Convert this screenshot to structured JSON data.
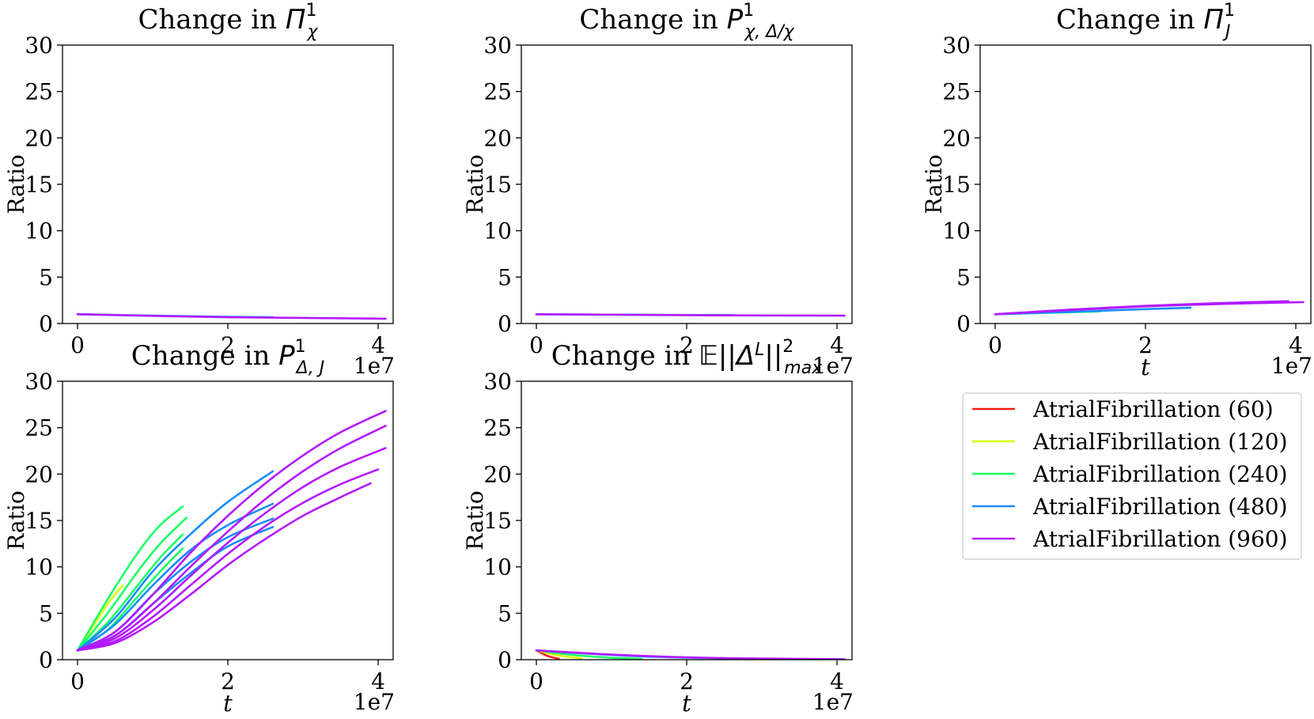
{
  "figure": {
    "legend": {
      "entries": [
        {
          "label": "AtrialFibrillation (60)",
          "color": "#ff1a1a"
        },
        {
          "label": "AtrialFibrillation (120)",
          "color": "#d4ff00"
        },
        {
          "label": "AtrialFibrillation (240)",
          "color": "#1aff66"
        },
        {
          "label": "AtrialFibrillation (480)",
          "color": "#1a8cff"
        },
        {
          "label": "AtrialFibrillation (960)",
          "color": "#b31aff"
        }
      ]
    }
  },
  "chart_data": [
    {
      "type": "line",
      "title": "Change in Π¹_χ",
      "title_main": "Change in ",
      "title_sym": "Π",
      "title_sup": "1",
      "title_sub": "χ",
      "xlabel": "",
      "ylabel": "Ratio",
      "xlim": [
        -2000000.0,
        42000000.0
      ],
      "ylim": [
        0,
        30
      ],
      "xticks": [
        "0",
        "2",
        "4"
      ],
      "yticks": [
        "0",
        "5",
        "10",
        "15",
        "20",
        "25",
        "30"
      ],
      "offset_label": "1e7",
      "series": [
        {
          "color": "#1a8cff",
          "x": [
            0,
            10000000.0,
            20000000.0,
            26000000.0
          ],
          "y": [
            1.0,
            0.85,
            0.72,
            0.68
          ]
        },
        {
          "color": "#b31aff",
          "x": [
            0,
            10000000.0,
            20000000.0,
            30000000.0,
            41000000.0
          ],
          "y": [
            1.0,
            0.82,
            0.68,
            0.6,
            0.52
          ]
        }
      ]
    },
    {
      "type": "line",
      "title": "Change in P¹_χ,Δ/χ",
      "title_main": "Change in ",
      "title_sym": "P",
      "title_sup": "1",
      "title_sub": "χ, Δ/χ",
      "xlabel": "",
      "ylabel": "Ratio",
      "xlim": [
        -2000000.0,
        42000000.0
      ],
      "ylim": [
        0,
        30
      ],
      "xticks": [
        "0",
        "2",
        "4"
      ],
      "yticks": [
        "0",
        "5",
        "10",
        "15",
        "20",
        "25",
        "30"
      ],
      "offset_label": "1e7",
      "series": [
        {
          "color": "#1a8cff",
          "x": [
            0,
            10000000.0,
            26000000.0
          ],
          "y": [
            1.0,
            0.95,
            0.9
          ]
        },
        {
          "color": "#b31aff",
          "x": [
            0,
            10000000.0,
            20000000.0,
            30000000.0,
            41000000.0
          ],
          "y": [
            1.0,
            0.95,
            0.9,
            0.87,
            0.85
          ]
        }
      ]
    },
    {
      "type": "line",
      "title": "Change in Π¹_J",
      "title_main": "Change in ",
      "title_sym": "Π",
      "title_sup": "1",
      "title_sub": "J",
      "xlabel": "t",
      "ylabel": "Ratio",
      "xlim": [
        -2000000.0,
        42000000.0
      ],
      "ylim": [
        0,
        30
      ],
      "xticks": [
        "0",
        "2",
        "4"
      ],
      "yticks": [
        "0",
        "5",
        "10",
        "15",
        "20",
        "25",
        "30"
      ],
      "offset_label": "1e7",
      "series": [
        {
          "color": "#1aff66",
          "x": [
            0,
            7000000.0,
            14000000.0
          ],
          "y": [
            1.0,
            1.15,
            1.3
          ]
        },
        {
          "color": "#1a8cff",
          "x": [
            0,
            10000000.0,
            20000000.0,
            26000000.0
          ],
          "y": [
            1.0,
            1.25,
            1.55,
            1.7
          ]
        },
        {
          "color": "#b31aff",
          "x": [
            0,
            10000000.0,
            20000000.0,
            30000000.0,
            41000000.0
          ],
          "y": [
            1.0,
            1.45,
            1.85,
            2.1,
            2.3
          ]
        },
        {
          "color": "#b31aff",
          "x": [
            0,
            10000000.0,
            20000000.0,
            30000000.0,
            39000000.0
          ],
          "y": [
            1.0,
            1.5,
            1.9,
            2.2,
            2.4
          ]
        }
      ]
    },
    {
      "type": "line",
      "title": "Change in P¹_Δ,J",
      "title_main": "Change in ",
      "title_sym": "P",
      "title_sup": "1",
      "title_sub": "Δ, J",
      "xlabel": "t",
      "ylabel": "Ratio",
      "xlim": [
        -2000000.0,
        42000000.0
      ],
      "ylim": [
        0,
        30
      ],
      "xticks": [
        "0",
        "2",
        "4"
      ],
      "yticks": [
        "0",
        "5",
        "10",
        "15",
        "20",
        "25",
        "30"
      ],
      "offset_label": "1e7",
      "series": [
        {
          "color": "#d4ff00",
          "x": [
            0,
            2000000.0,
            4000000.0,
            6000000.0
          ],
          "y": [
            1.0,
            3.5,
            6.0,
            8.0
          ]
        },
        {
          "color": "#1aff66",
          "x": [
            0,
            4000000.0,
            8000000.0,
            11000000.0,
            14000000.0
          ],
          "y": [
            1.0,
            6.5,
            11.5,
            14.5,
            16.5
          ]
        },
        {
          "color": "#1aff66",
          "x": [
            0,
            4000000.0,
            8000000.0,
            11000000.0,
            14500000.0
          ],
          "y": [
            1.0,
            5.0,
            9.5,
            12.5,
            15.3
          ]
        },
        {
          "color": "#1aff66",
          "x": [
            0,
            4000000.0,
            8000000.0,
            11000000.0,
            14000000.0
          ],
          "y": [
            1.0,
            4.0,
            8.0,
            11.0,
            13.5
          ]
        },
        {
          "color": "#1aff66",
          "x": [
            0,
            4000000.0,
            8000000.0,
            11000000.0,
            14000000.0
          ],
          "y": [
            1.0,
            3.2,
            6.8,
            9.5,
            12.0
          ]
        },
        {
          "color": "#1a8cff",
          "x": [
            0,
            5000000.0,
            10000000.0,
            15000000.0,
            20000000.0,
            26000000.0
          ],
          "y": [
            1.0,
            4.5,
            9.5,
            13.5,
            17.0,
            20.3
          ]
        },
        {
          "color": "#1a8cff",
          "x": [
            0,
            5000000.0,
            10000000.0,
            15000000.0,
            20000000.0,
            26000000.0
          ],
          "y": [
            1.0,
            3.8,
            8.0,
            11.8,
            14.5,
            16.8
          ]
        },
        {
          "color": "#1a8cff",
          "x": [
            0,
            5000000.0,
            10000000.0,
            15000000.0,
            20000000.0,
            26000000.0
          ],
          "y": [
            1.0,
            3.0,
            7.0,
            10.5,
            13.2,
            15.2
          ]
        },
        {
          "color": "#1a8cff",
          "x": [
            0,
            5000000.0,
            10000000.0,
            15000000.0,
            20000000.0,
            26000000.0
          ],
          "y": [
            1.0,
            2.6,
            6.0,
            9.3,
            12.2,
            14.3
          ]
        },
        {
          "color": "#b31aff",
          "x": [
            0,
            5000000.0,
            10000000.0,
            15000000.0,
            20000000.0,
            25000000.0,
            30000000.0,
            35000000.0,
            41000000.0
          ],
          "y": [
            1.0,
            3.0,
            7.0,
            11.5,
            15.5,
            19.0,
            22.0,
            24.5,
            26.8
          ]
        },
        {
          "color": "#b31aff",
          "x": [
            0,
            5000000.0,
            10000000.0,
            15000000.0,
            20000000.0,
            25000000.0,
            30000000.0,
            35000000.0,
            41000000.0
          ],
          "y": [
            1.0,
            2.6,
            6.0,
            10.0,
            13.8,
            17.3,
            20.3,
            22.8,
            25.2
          ]
        },
        {
          "color": "#b31aff",
          "x": [
            0,
            5000000.0,
            10000000.0,
            15000000.0,
            20000000.0,
            25000000.0,
            30000000.0,
            35000000.0,
            41000000.0
          ],
          "y": [
            1.0,
            2.3,
            5.3,
            9.0,
            12.6,
            15.8,
            18.6,
            20.8,
            22.8
          ]
        },
        {
          "color": "#b31aff",
          "x": [
            0,
            5000000.0,
            10000000.0,
            15000000.0,
            20000000.0,
            25000000.0,
            30000000.0,
            35000000.0,
            40000000.0
          ],
          "y": [
            1.0,
            2.0,
            4.6,
            8.0,
            11.4,
            14.4,
            16.9,
            18.9,
            20.5
          ]
        },
        {
          "color": "#b31aff",
          "x": [
            0,
            5000000.0,
            10000000.0,
            15000000.0,
            20000000.0,
            25000000.0,
            30000000.0,
            35000000.0,
            39000000.0
          ],
          "y": [
            1.0,
            1.8,
            4.0,
            7.0,
            10.2,
            13.0,
            15.5,
            17.5,
            19.0
          ]
        }
      ]
    },
    {
      "type": "line",
      "title": "Change in 𝔼||Δᴸ||²_max",
      "title_main": "Change in ",
      "title_sym": "𝔼||Δ",
      "title_sup_mid": "L",
      "title_after": "||",
      "title_sup": "2",
      "title_sub": "max",
      "xlabel": "t",
      "ylabel": "Ratio",
      "xlim": [
        -2000000.0,
        42000000.0
      ],
      "ylim": [
        0,
        30
      ],
      "xticks": [
        "0",
        "2",
        "4"
      ],
      "yticks": [
        "0",
        "5",
        "10",
        "15",
        "20",
        "25",
        "30"
      ],
      "offset_label": "1e7",
      "series": [
        {
          "color": "#ff1a1a",
          "x": [
            0,
            1500000.0,
            3000000.0
          ],
          "y": [
            1.0,
            0.4,
            0.1
          ]
        },
        {
          "color": "#d4ff00",
          "x": [
            0,
            3000000.0,
            6000000.0
          ],
          "y": [
            1.0,
            0.45,
            0.15
          ]
        },
        {
          "color": "#1aff66",
          "x": [
            0,
            5000000.0,
            10000000.0,
            14000000.0
          ],
          "y": [
            1.0,
            0.5,
            0.2,
            0.1
          ]
        },
        {
          "color": "#1a8cff",
          "x": [
            0,
            8000000.0,
            16000000.0,
            26000000.0
          ],
          "y": [
            1.0,
            0.6,
            0.3,
            0.12
          ]
        },
        {
          "color": "#b31aff",
          "x": [
            0,
            10000000.0,
            20000000.0,
            30000000.0,
            41000000.0
          ],
          "y": [
            1.0,
            0.55,
            0.25,
            0.12,
            0.05
          ]
        }
      ]
    }
  ]
}
